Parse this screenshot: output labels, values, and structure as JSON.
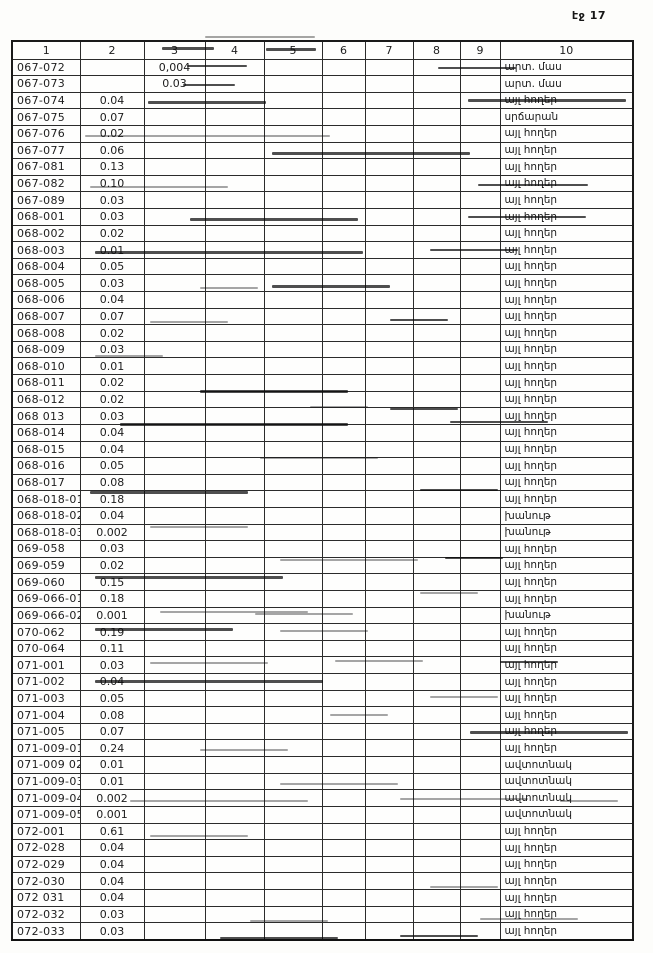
{
  "page_label": "էջ 17",
  "table": {
    "headers": [
      "1",
      "2",
      "3",
      "4",
      "5",
      "6",
      "7",
      "8",
      "9",
      "10"
    ],
    "rows": [
      [
        "067-072",
        "",
        "0,004",
        "",
        "",
        "",
        "",
        "",
        "",
        "արտ. մաս"
      ],
      [
        "067-073",
        "",
        "0.03",
        "",
        "",
        "",
        "",
        "",
        "",
        "արտ. մաս"
      ],
      [
        "067-074",
        "0.04",
        "",
        "",
        "",
        "",
        "",
        "",
        "",
        "այլ հողեր"
      ],
      [
        "067-075",
        "0.07",
        "",
        "",
        "",
        "",
        "",
        "",
        "",
        "սրճարան"
      ],
      [
        "067-076",
        "0.02",
        "",
        "",
        "",
        "",
        "",
        "",
        "",
        "այլ հողեր"
      ],
      [
        "067-077",
        "0.06",
        "",
        "",
        "",
        "",
        "",
        "",
        "",
        "այլ հողեր"
      ],
      [
        "067-081",
        "0.13",
        "",
        "",
        "",
        "",
        "",
        "",
        "",
        "այլ հողեր"
      ],
      [
        "067-082",
        "0.10",
        "",
        "",
        "",
        "",
        "",
        "",
        "",
        "այլ հողեր"
      ],
      [
        "067-089",
        "0.03",
        "",
        "",
        "",
        "",
        "",
        "",
        "",
        "այլ հողեր"
      ],
      [
        "068-001",
        "0.03",
        "",
        "",
        "",
        "",
        "",
        "",
        "",
        "այլ հողեր"
      ],
      [
        "068-002",
        "0.02",
        "",
        "",
        "",
        "",
        "",
        "",
        "",
        "այլ հողեր"
      ],
      [
        "068-003",
        "0.01",
        "",
        "",
        "",
        "",
        "",
        "",
        "",
        "այլ հողեր"
      ],
      [
        "068-004",
        "0.05",
        "",
        "",
        "",
        "",
        "",
        "",
        "",
        "այլ հողեր"
      ],
      [
        "068-005",
        "0.03",
        "",
        "",
        "",
        "",
        "",
        "",
        "",
        "այլ հողեր"
      ],
      [
        "068-006",
        "0.04",
        "",
        "",
        "",
        "",
        "",
        "",
        "",
        "այլ հողեր"
      ],
      [
        "068-007",
        "0.07",
        "",
        "",
        "",
        "",
        "",
        "",
        "",
        "այլ հողեր"
      ],
      [
        "068-008",
        "0.02",
        "",
        "",
        "",
        "",
        "",
        "",
        "",
        "այլ հողեր"
      ],
      [
        "068-009",
        "0.03",
        "",
        "",
        "",
        "",
        "",
        "",
        "",
        "այլ հողեր"
      ],
      [
        "068-010",
        "0.01",
        "",
        "",
        "",
        "",
        "",
        "",
        "",
        "այլ հողեր"
      ],
      [
        "068-011",
        "0.02",
        "",
        "",
        "",
        "",
        "",
        "",
        "",
        "այլ հողեր"
      ],
      [
        "068-012",
        "0.02",
        "",
        "",
        "",
        "",
        "",
        "",
        "",
        "այլ հողեր"
      ],
      [
        "068 013",
        "0.03",
        "",
        "",
        "",
        "",
        "",
        "",
        "",
        "այլ հողեր"
      ],
      [
        "068-014",
        "0.04",
        "",
        "",
        "",
        "",
        "",
        "",
        "",
        "այլ հողեր"
      ],
      [
        "068-015",
        "0.04",
        "",
        "",
        "",
        "",
        "",
        "",
        "",
        "այլ հողեր"
      ],
      [
        "068-016",
        "0.05",
        "",
        "",
        "",
        "",
        "",
        "",
        "",
        "այլ հողեր"
      ],
      [
        "068-017",
        "0.08",
        "",
        "",
        "",
        "",
        "",
        "",
        "",
        "այլ հողեր"
      ],
      [
        "068-018-01",
        "0.18",
        "",
        "",
        "",
        "",
        "",
        "",
        "",
        "այլ հողեր"
      ],
      [
        "068-018-02",
        "0.04",
        "",
        "",
        "",
        "",
        "",
        "",
        "",
        "խանութ"
      ],
      [
        "068-018-03",
        "0.002",
        "",
        "",
        "",
        "",
        "",
        "",
        "",
        "խանութ"
      ],
      [
        "069-058",
        "0.03",
        "",
        "",
        "",
        "",
        "",
        "",
        "",
        "այլ հողեր"
      ],
      [
        "069-059",
        "0.02",
        "",
        "",
        "",
        "",
        "",
        "",
        "",
        "այլ հողեր"
      ],
      [
        "069-060",
        "0.15",
        "",
        "",
        "",
        "",
        "",
        "",
        "",
        "այլ հողեր"
      ],
      [
        "069-066-01",
        "0.18",
        "",
        "",
        "",
        "",
        "",
        "",
        "",
        "այլ հողեր"
      ],
      [
        "069-066-02",
        "0.001",
        "",
        "",
        "",
        "",
        "",
        "",
        "",
        "խանութ"
      ],
      [
        "070-062",
        "0.19",
        "",
        "",
        "",
        "",
        "",
        "",
        "",
        "այլ հողեր"
      ],
      [
        "070-064",
        "0.11",
        "",
        "",
        "",
        "",
        "",
        "",
        "",
        "այլ հողեր"
      ],
      [
        "071-001",
        "0.03",
        "",
        "",
        "",
        "",
        "",
        "",
        "",
        "այլ հողեր"
      ],
      [
        "071-002",
        "0.04",
        "",
        "",
        "",
        "",
        "",
        "",
        "",
        "այլ հողեր"
      ],
      [
        "071-003",
        "0.05",
        "",
        "",
        "",
        "",
        "",
        "",
        "",
        "այլ հողեր"
      ],
      [
        "071-004",
        "0.08",
        "",
        "",
        "",
        "",
        "",
        "",
        "",
        "այլ հողեր"
      ],
      [
        "071-005",
        "0.07",
        "",
        "",
        "",
        "",
        "",
        "",
        "",
        "այլ հողեր"
      ],
      [
        "071-009-01",
        "0.24",
        "",
        "",
        "",
        "",
        "",
        "",
        "",
        "այլ հողեր"
      ],
      [
        "071-009 02",
        "0.01",
        "",
        "",
        "",
        "",
        "",
        "",
        "",
        "ավտոտնակ"
      ],
      [
        "071-009-03",
        "0.01",
        "",
        "",
        "",
        "",
        "",
        "",
        "",
        "ավտոտնակ"
      ],
      [
        "071-009-04",
        "0.002",
        "",
        "",
        "",
        "",
        "",
        "",
        "",
        "ավտոտնակ"
      ],
      [
        "071-009-05",
        "0.001",
        "",
        "",
        "",
        "",
        "",
        "",
        "",
        "ավտոտնակ"
      ],
      [
        "072-001",
        "0.61",
        "",
        "",
        "",
        "",
        "",
        "",
        "",
        "այլ հողեր"
      ],
      [
        "072-028",
        "0.04",
        "",
        "",
        "",
        "",
        "",
        "",
        "",
        "այլ հողեր"
      ],
      [
        "072-029",
        "0.04",
        "",
        "",
        "",
        "",
        "",
        "",
        "",
        "այլ հողեր"
      ],
      [
        "072-030",
        "0.04",
        "",
        "",
        "",
        "",
        "",
        "",
        "",
        "այլ հողեր"
      ],
      [
        "072 031",
        "0.04",
        "",
        "",
        "",
        "",
        "",
        "",
        "",
        "այլ հողեր"
      ],
      [
        "072-032",
        "0.03",
        "",
        "",
        "",
        "",
        "",
        "",
        "",
        "այլ հողեր"
      ],
      [
        "072-033",
        "0.03",
        "",
        "",
        "",
        "",
        "",
        "",
        "",
        "այլ հողեր"
      ]
    ]
  }
}
